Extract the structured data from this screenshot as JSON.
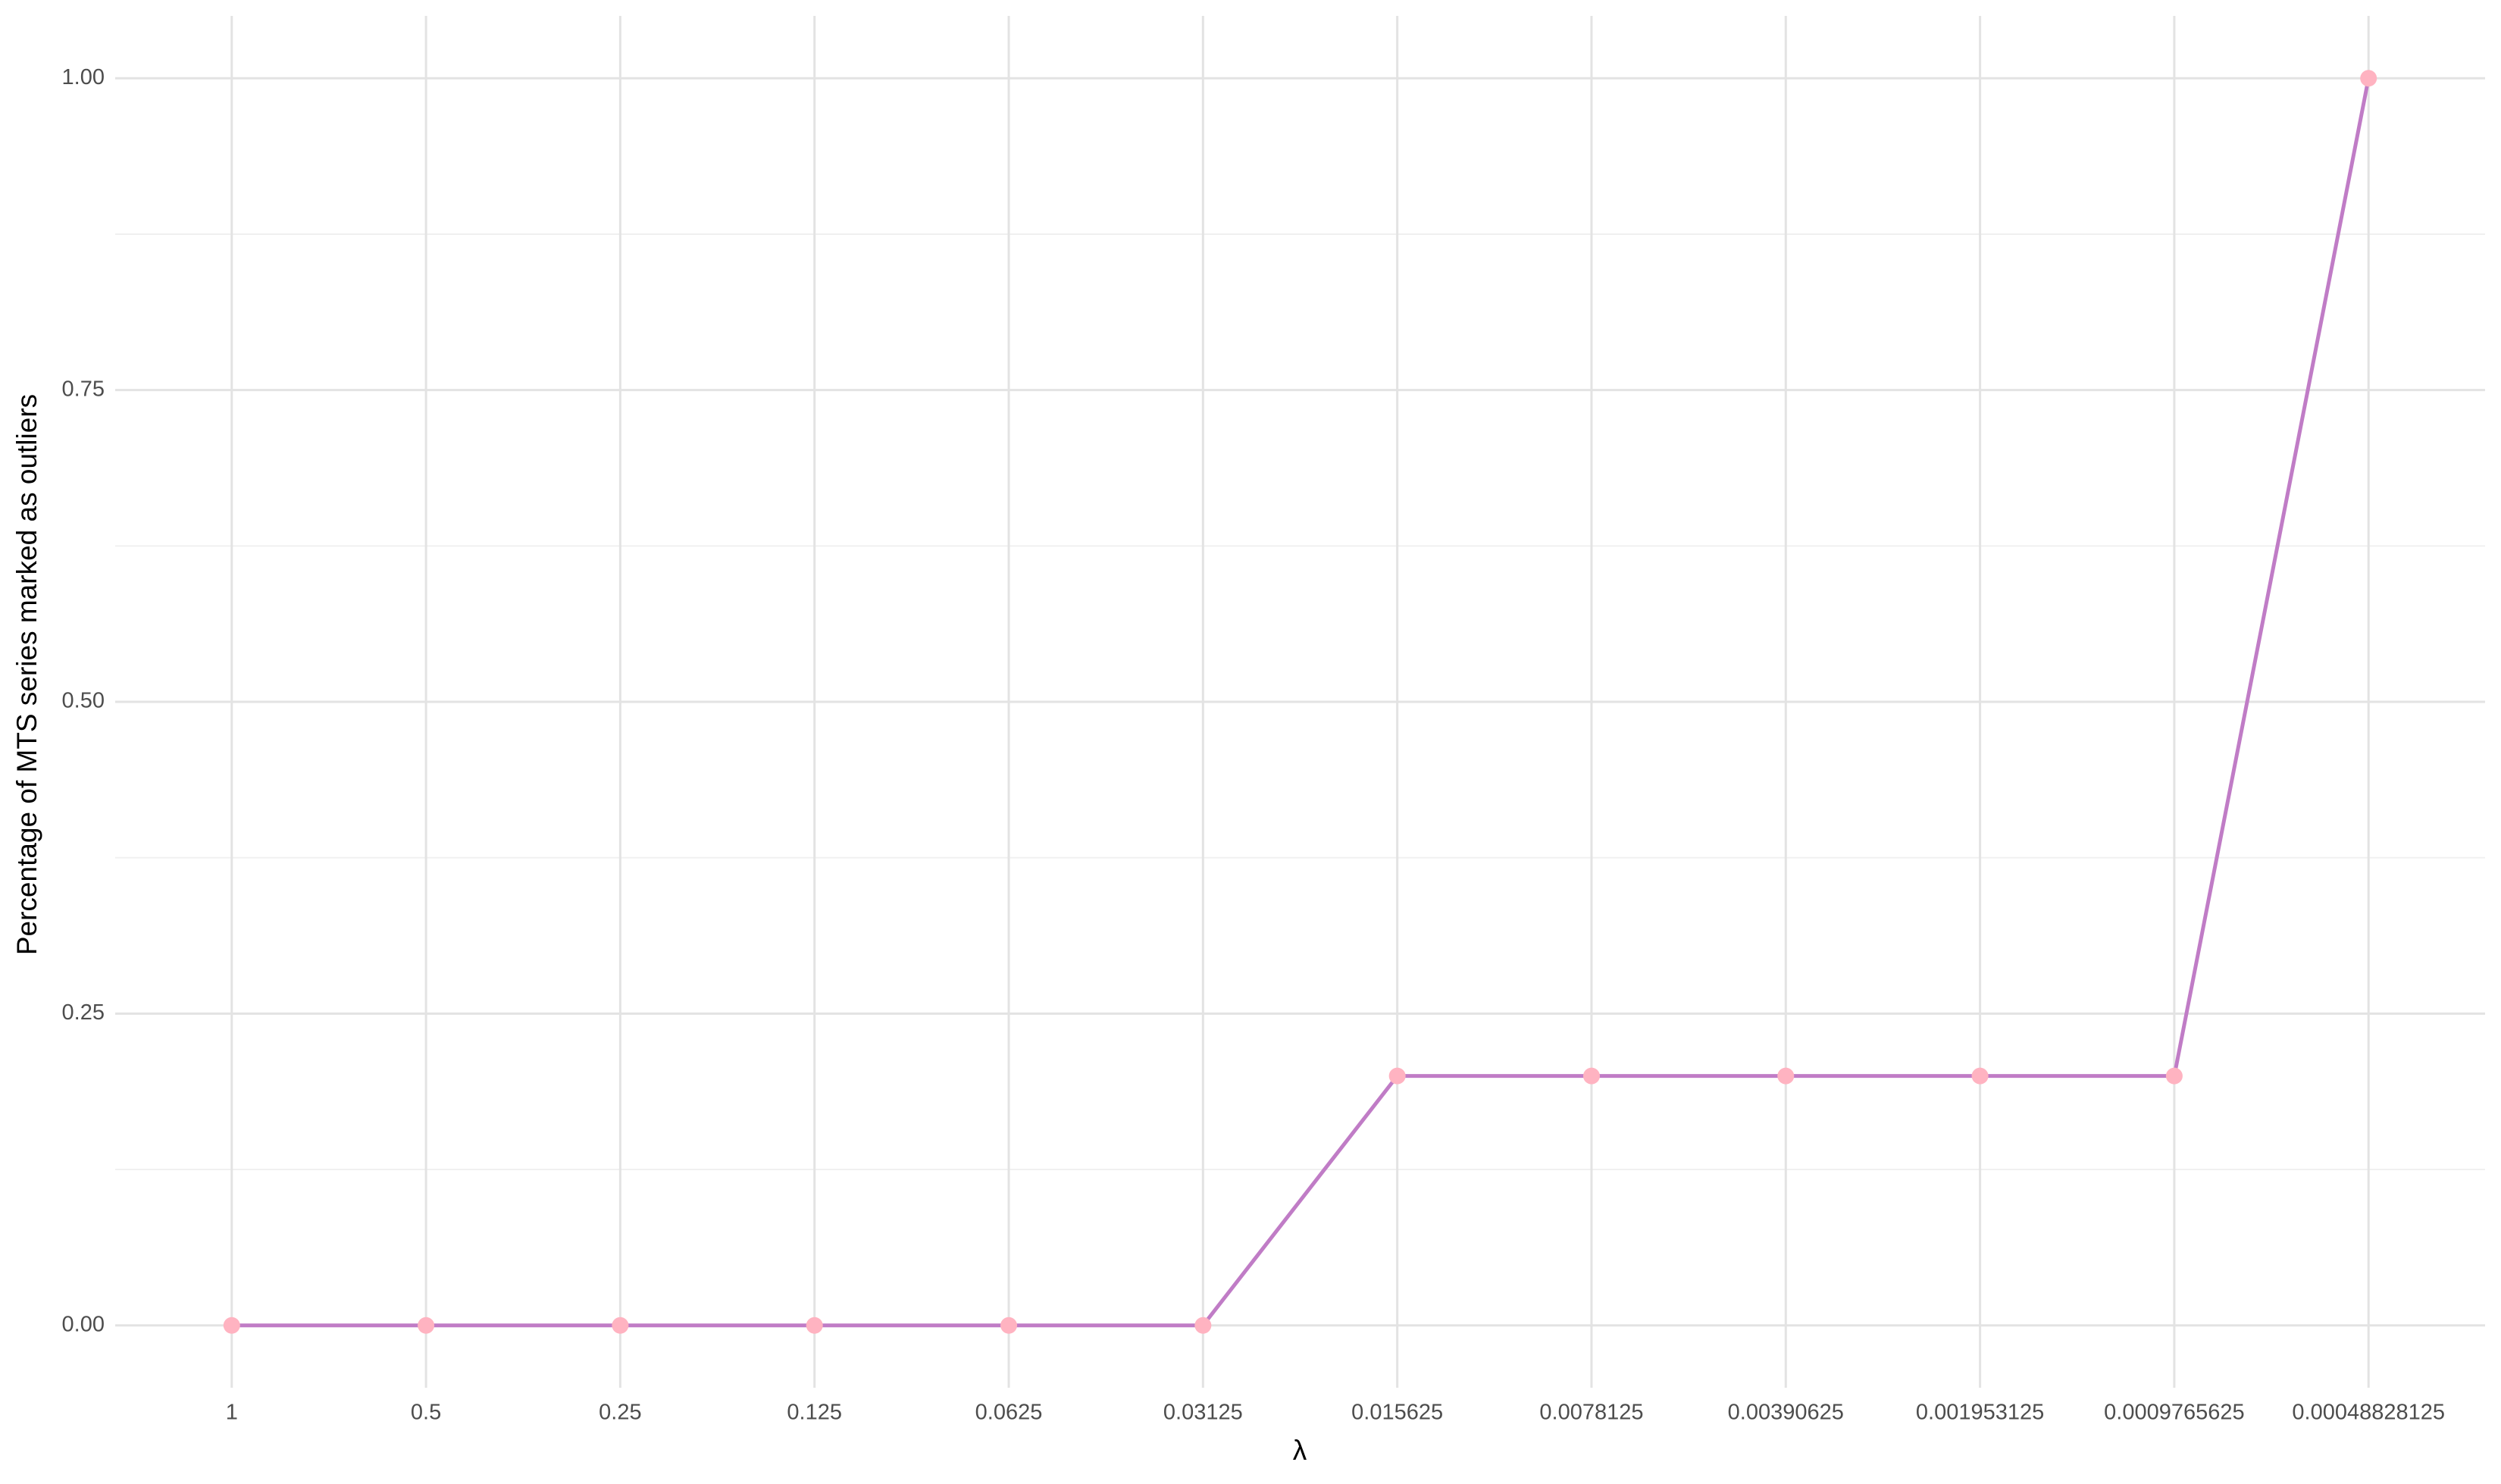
{
  "chart_data": {
    "type": "line",
    "x_label": "λ",
    "y_label": "Percentage of MTS series marked as outliers",
    "categories": [
      "1",
      "0.5",
      "0.25",
      "0.125",
      "0.0625",
      "0.03125",
      "0.015625",
      "0.0078125",
      "0.00390625",
      "0.001953125",
      "0.0009765625",
      "0.00048828125"
    ],
    "values": [
      0,
      0,
      0,
      0,
      0,
      0,
      0.2,
      0.2,
      0.2,
      0.2,
      0.2,
      1.0
    ],
    "color": "#c07cc6",
    "point_color": "#ffb3c1",
    "ylim": [
      -0.05,
      1.05
    ],
    "yticks": [
      {
        "value": 0,
        "label": "0.00"
      },
      {
        "value": 0.25,
        "label": "0.25"
      },
      {
        "value": 0.5,
        "label": "0.50"
      },
      {
        "value": 0.75,
        "label": "0.75"
      },
      {
        "value": 1,
        "label": "1.00"
      }
    ],
    "yminorticks": [
      0.125,
      0.375,
      0.625,
      0.875
    ],
    "grid": true
  }
}
